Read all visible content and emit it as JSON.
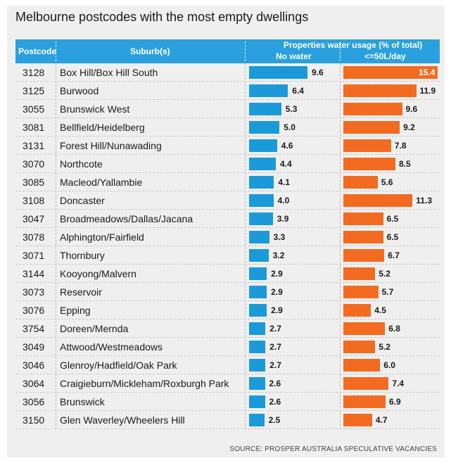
{
  "title": "Melbourne postcodes with the most empty dwellings",
  "source": "SOURCE: PROSPER AUSTRALIA SPECULATIVE VACANCIES",
  "colors": {
    "header": "#2aa0de",
    "no_water": "#1a9ad8",
    "low_usage": "#f26b21"
  },
  "chart_data": {
    "type": "table",
    "title": "Melbourne postcodes with the most empty dwellings",
    "group_header": "Properties water usage (% of total)",
    "columns": [
      "Postcode",
      "Suburb(s)",
      "No water",
      "<=50L/day"
    ],
    "series": [
      {
        "name": "No water",
        "xlim": [
          0,
          10
        ]
      },
      {
        "name": "<=50L/day",
        "xlim": [
          0,
          16
        ]
      }
    ],
    "rows": [
      {
        "postcode": "3128",
        "suburb": "Box Hill/Box Hill South",
        "no_water": 9.6,
        "low_usage": 15.4
      },
      {
        "postcode": "3125",
        "suburb": "Burwood",
        "no_water": 6.4,
        "low_usage": 11.9
      },
      {
        "postcode": "3055",
        "suburb": "Brunswick West",
        "no_water": 5.3,
        "low_usage": 9.6
      },
      {
        "postcode": "3081",
        "suburb": "Bellfield/Heidelberg",
        "no_water": 5.0,
        "low_usage": 9.2
      },
      {
        "postcode": "3131",
        "suburb": "Forest Hill/Nunawading",
        "no_water": 4.6,
        "low_usage": 7.8
      },
      {
        "postcode": "3070",
        "suburb": "Northcote",
        "no_water": 4.4,
        "low_usage": 8.5
      },
      {
        "postcode": "3085",
        "suburb": "Macleod/Yallambie",
        "no_water": 4.1,
        "low_usage": 5.6
      },
      {
        "postcode": "3108",
        "suburb": "Doncaster",
        "no_water": 4.0,
        "low_usage": 11.3
      },
      {
        "postcode": "3047",
        "suburb": "Broadmeadows/Dallas/Jacana",
        "no_water": 3.9,
        "low_usage": 6.5
      },
      {
        "postcode": "3078",
        "suburb": "Alphington/Fairfield",
        "no_water": 3.3,
        "low_usage": 6.5
      },
      {
        "postcode": "3071",
        "suburb": "Thornbury",
        "no_water": 3.2,
        "low_usage": 6.7
      },
      {
        "postcode": "3144",
        "suburb": "Kooyong/Malvern",
        "no_water": 2.9,
        "low_usage": 5.2
      },
      {
        "postcode": "3073",
        "suburb": "Reservoir",
        "no_water": 2.9,
        "low_usage": 5.7
      },
      {
        "postcode": "3076",
        "suburb": "Epping",
        "no_water": 2.9,
        "low_usage": 4.5
      },
      {
        "postcode": "3754",
        "suburb": "Doreen/Mernda",
        "no_water": 2.7,
        "low_usage": 6.8
      },
      {
        "postcode": "3049",
        "suburb": "Attwood/Westmeadows",
        "no_water": 2.7,
        "low_usage": 5.2
      },
      {
        "postcode": "3046",
        "suburb": "Glenroy/Hadfield/Oak Park",
        "no_water": 2.7,
        "low_usage": 6.0
      },
      {
        "postcode": "3064",
        "suburb": "Craigieburn/Mickleham/Roxburgh Park",
        "no_water": 2.6,
        "low_usage": 7.4
      },
      {
        "postcode": "3056",
        "suburb": "Brunswick",
        "no_water": 2.6,
        "low_usage": 6.9
      },
      {
        "postcode": "3150",
        "suburb": "Glen Waverley/Wheelers Hill",
        "no_water": 2.5,
        "low_usage": 4.7
      }
    ]
  }
}
